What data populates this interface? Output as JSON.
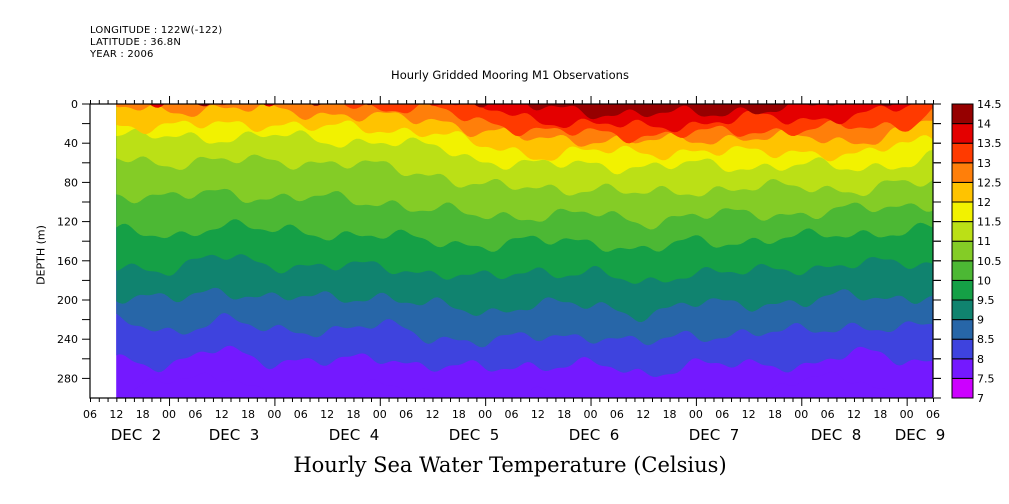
{
  "header": {
    "longitude": "LONGITUDE : 122W(-122)",
    "latitude": "LATITUDE : 36.8N",
    "year": "YEAR : 2006"
  },
  "chart_data": {
    "type": "heatmap",
    "subtitle": "Hourly Gridded Mooring M1 Observations",
    "title": "Hourly Sea Water Temperature (Celsius)",
    "xlabel": "",
    "ylabel": "DEPTH (m)",
    "ylim": [
      0,
      300
    ],
    "y_ticks": [
      0,
      40,
      80,
      120,
      160,
      200,
      240,
      280
    ],
    "y_tick_labels": [
      "0",
      "40",
      "80",
      "120",
      "160",
      "200",
      "240",
      "280"
    ],
    "x_hour_labels": [
      "06",
      "12",
      "18",
      "00",
      "06",
      "12",
      "18",
      "00",
      "06",
      "12",
      "18",
      "00",
      "06",
      "12",
      "18",
      "00",
      "06",
      "12",
      "18",
      "00",
      "06",
      "12",
      "18",
      "00",
      "06",
      "12",
      "18",
      "00",
      "06",
      "12",
      "18",
      "00",
      "06"
    ],
    "x_day_labels": [
      "DEC  2",
      "DEC  3",
      "DEC  4",
      "DEC  5",
      "DEC  6",
      "DEC  7",
      "DEC  8",
      "DEC  9"
    ],
    "x_range_hours": [
      0,
      192
    ],
    "data_start_hour": 6,
    "colorbar": {
      "levels": [
        "7",
        "7.5",
        "8",
        "8.5",
        "9",
        "9.5",
        "10",
        "10.5",
        "11",
        "11.5",
        "12",
        "12.5",
        "13",
        "13.5",
        "14",
        "14.5"
      ],
      "colors": [
        "#cc00ff",
        "#7419ff",
        "#3e43de",
        "#2766a8",
        "#10836f",
        "#15a046",
        "#4cb834",
        "#84cc26",
        "#bbe016",
        "#f2f200",
        "#ffc300",
        "#ff7f0a",
        "#ff3a00",
        "#e40000",
        "#960000"
      ]
    },
    "isotherm_depths_profile": {
      "time_hours": [
        6,
        18,
        30,
        42,
        54,
        66,
        78,
        90,
        102,
        114,
        126,
        138,
        150,
        162,
        174,
        186,
        192
      ],
      "series": [
        {
          "name": "14",
          "values": [
            -5,
            -5,
            -5,
            -5,
            -5,
            -5,
            -5,
            -5,
            4,
            8,
            10,
            10,
            6,
            4,
            -5,
            -5,
            -5
          ]
        },
        {
          "name": "13.5",
          "values": [
            -5,
            -5,
            -5,
            -5,
            -5,
            -5,
            -5,
            6,
            16,
            20,
            24,
            20,
            14,
            16,
            12,
            4,
            -5
          ]
        },
        {
          "name": "13",
          "values": [
            -5,
            -5,
            -5,
            -5,
            -5,
            4,
            6,
            18,
            28,
            30,
            32,
            30,
            28,
            26,
            24,
            22,
            4
          ]
        },
        {
          "name": "12.5",
          "values": [
            4,
            6,
            5,
            6,
            10,
            14,
            16,
            28,
            36,
            36,
            38,
            36,
            34,
            34,
            38,
            28,
            14
          ]
        },
        {
          "name": "12",
          "values": [
            22,
            22,
            22,
            20,
            24,
            26,
            28,
            44,
            52,
            48,
            50,
            48,
            50,
            48,
            54,
            40,
            32
          ]
        },
        {
          "name": "11.5",
          "values": [
            32,
            34,
            34,
            32,
            38,
            38,
            44,
            58,
            62,
            62,
            64,
            62,
            64,
            62,
            66,
            60,
            54
          ]
        },
        {
          "name": "11",
          "values": [
            56,
            60,
            58,
            58,
            60,
            64,
            72,
            84,
            86,
            86,
            92,
            88,
            86,
            84,
            88,
            82,
            80
          ]
        },
        {
          "name": "10.5",
          "values": [
            92,
            96,
            90,
            96,
            96,
            100,
            108,
            114,
            114,
            112,
            120,
            114,
            112,
            112,
            108,
            104,
            102
          ]
        },
        {
          "name": "10",
          "values": [
            130,
            136,
            122,
            130,
            132,
            134,
            140,
            144,
            140,
            140,
            150,
            140,
            140,
            136,
            132,
            130,
            128
          ]
        },
        {
          "name": "9.5",
          "values": [
            166,
            168,
            156,
            164,
            166,
            166,
            172,
            178,
            170,
            172,
            184,
            170,
            172,
            168,
            162,
            164,
            164
          ]
        },
        {
          "name": "9",
          "values": [
            196,
            200,
            190,
            198,
            198,
            196,
            206,
            212,
            204,
            206,
            214,
            204,
            204,
            202,
            196,
            198,
            194
          ]
        },
        {
          "name": "8.5",
          "values": [
            222,
            232,
            220,
            232,
            230,
            226,
            238,
            242,
            238,
            236,
            244,
            236,
            234,
            232,
            226,
            230,
            226
          ]
        },
        {
          "name": "8",
          "values": [
            258,
            268,
            250,
            262,
            264,
            258,
            268,
            270,
            266,
            266,
            276,
            264,
            268,
            266,
            254,
            262,
            262
          ]
        },
        {
          "name": "7.5",
          "values": [
            300,
            282,
            275,
            300,
            300,
            284,
            300,
            300,
            296,
            300,
            300,
            296,
            300,
            282,
            280,
            300,
            300
          ]
        }
      ]
    }
  }
}
